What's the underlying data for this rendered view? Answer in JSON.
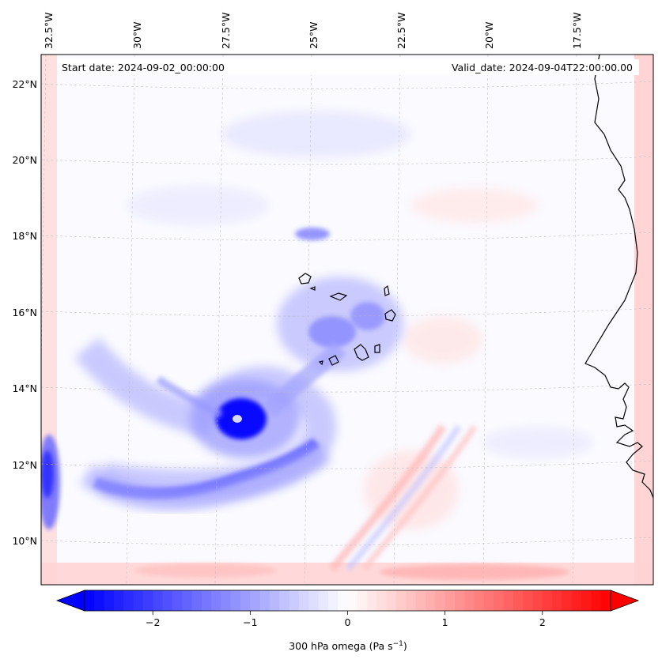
{
  "map": {
    "start_date": "Start date: 2024-09-02_00:00:00",
    "valid_date": "Valid_date: 2024-09-04T22:00:00.00",
    "variable": "300 hPa omega",
    "units_label": "300 hPa omega (Pa s",
    "units_exponent": "−1",
    "units_close": ")",
    "longitude_labels": [
      "32.5°W",
      "30°W",
      "27.5°W",
      "25°W",
      "22.5°W",
      "20°W",
      "17.5°W"
    ],
    "latitude_labels": [
      "22°N",
      "20°N",
      "18°N",
      "16°N",
      "14°N",
      "12°N",
      "10°N"
    ],
    "colorbar": {
      "min": -2.7,
      "max": 2.7,
      "ticks": [
        -2,
        -1,
        0,
        1,
        2
      ],
      "tick_labels": [
        "−2",
        "−1",
        "0",
        "1",
        "2"
      ],
      "low_color": "#0000ff",
      "mid_color": "#ffffff",
      "high_color": "#ff0000"
    }
  }
}
